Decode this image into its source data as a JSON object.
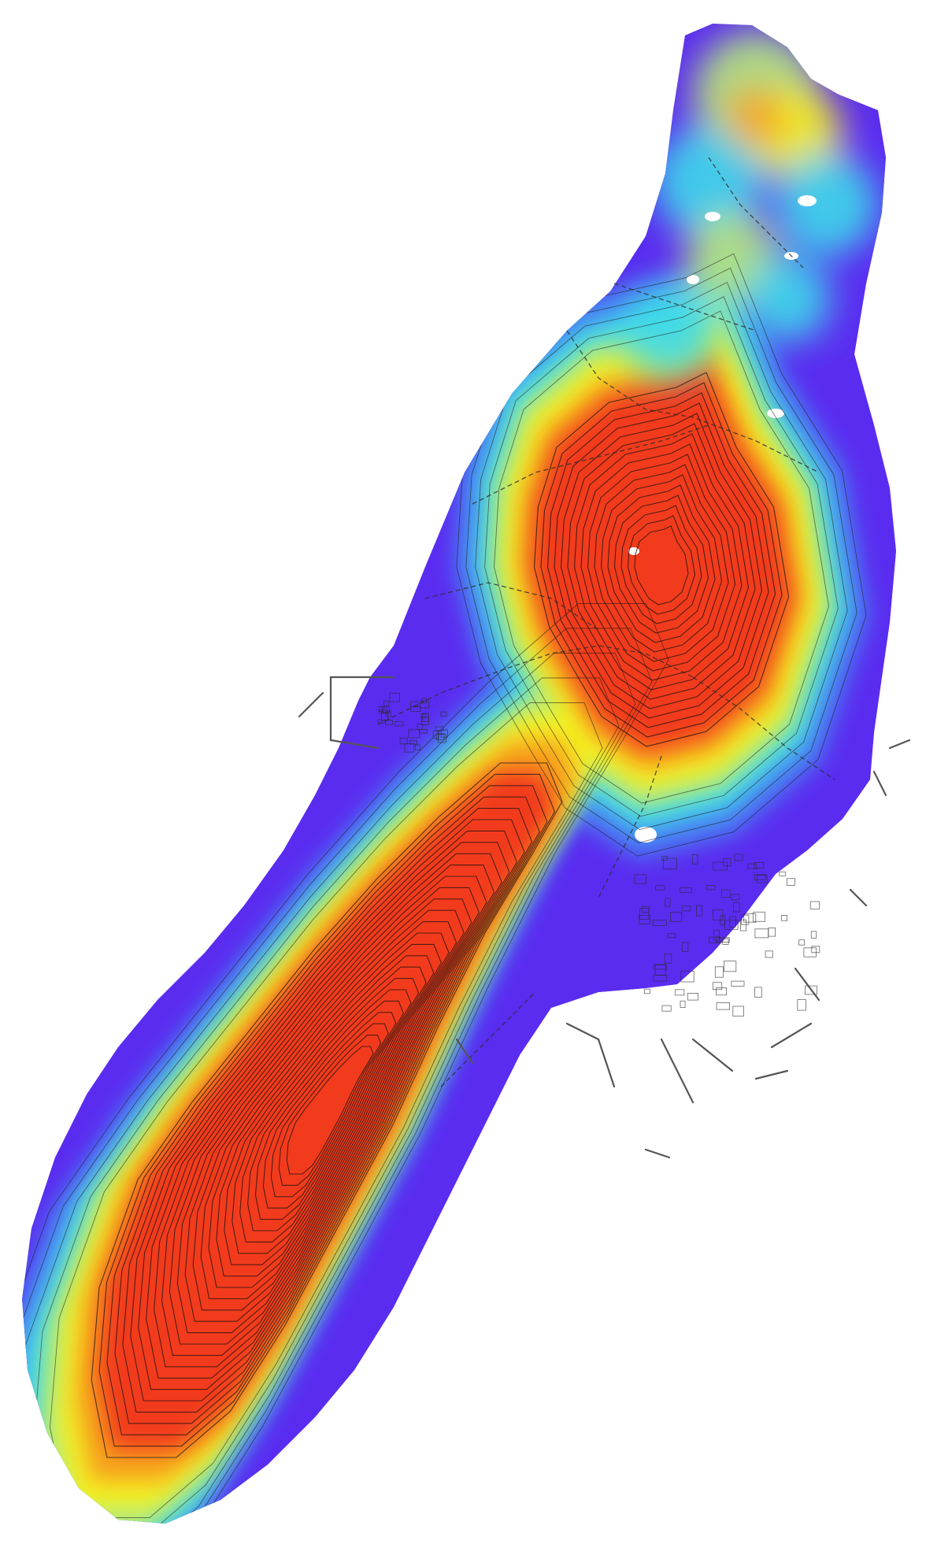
{
  "map": {
    "type": "terrain-heatmap",
    "colors": {
      "background": "#ffffff",
      "band_violet": "#5a2cf0",
      "band_blue": "#4a7cf2",
      "band_cyan": "#3ed9ea",
      "band_green": "#b6ea7a",
      "band_yellow": "#f4f221",
      "band_orange": "#f6a41d",
      "band_red": "#f23a1c",
      "contour_line": "#1c1410",
      "road_line": "#2a2a2a",
      "pier_line": "#555555"
    },
    "layers": [
      "elevation-bands",
      "contour-lines",
      "roads",
      "buildings",
      "piers"
    ],
    "legend": "none",
    "labels": []
  }
}
